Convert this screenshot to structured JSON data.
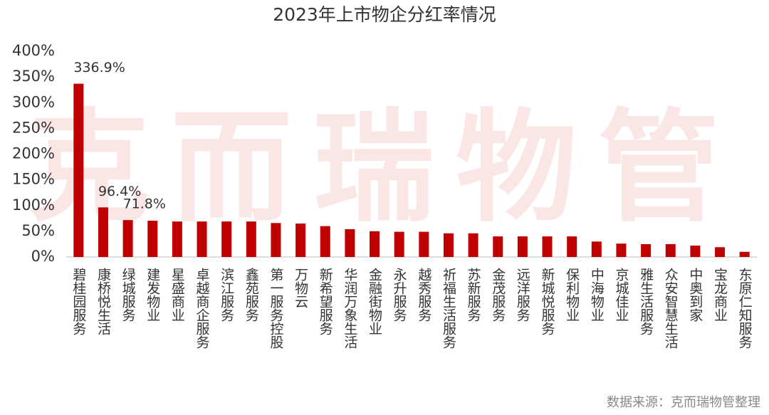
{
  "chart_data": {
    "type": "bar",
    "title": "2023年上市物企分红率情况",
    "watermark": "克而瑞物管",
    "source": "数据来源：克而瑞物管整理",
    "categories": [
      "碧桂园服务",
      "康桥悦生活",
      "绿城服务",
      "建发物业",
      "星盛商业",
      "卓越商企服务",
      "滨江服务",
      "鑫苑服务",
      "第一服务控股",
      "万物云",
      "新希望服务",
      "华润万象生活",
      "金融街物业",
      "永升服务",
      "越秀服务",
      "祈福生活服务",
      "苏新服务",
      "金茂服务",
      "远洋服务",
      "新城悦服务",
      "保利物业",
      "中海物业",
      "京城佳业",
      "雅生活服务",
      "众安智慧生活",
      "中奥到家",
      "宝龙商业",
      "东原仁知服务"
    ],
    "values": [
      336.9,
      96.4,
      71.8,
      70.6,
      69,
      69,
      69,
      69,
      66,
      65,
      60,
      54,
      50,
      49,
      49,
      46,
      46,
      40,
      40,
      40,
      40,
      30,
      26,
      25,
      25,
      22,
      19,
      10
    ],
    "value_labels": [
      "336.9%",
      "96.4%",
      "71.8%",
      null,
      null,
      null,
      null,
      null,
      null,
      null,
      null,
      null,
      null,
      null,
      null,
      null,
      null,
      null,
      null,
      null,
      null,
      null,
      null,
      null,
      null,
      null,
      null,
      null
    ],
    "color": "#c00000",
    "ylim": [
      0,
      400
    ],
    "yticks": [
      {
        "value": 0,
        "label": "0%"
      },
      {
        "value": 50,
        "label": "50%"
      },
      {
        "value": 100,
        "label": "100%"
      },
      {
        "value": 150,
        "label": "150%"
      },
      {
        "value": 200,
        "label": "200%"
      },
      {
        "value": 250,
        "label": "250%"
      },
      {
        "value": 300,
        "label": "300%"
      },
      {
        "value": 350,
        "label": "350%"
      },
      {
        "value": 400,
        "label": "400%"
      }
    ],
    "grid": false
  }
}
